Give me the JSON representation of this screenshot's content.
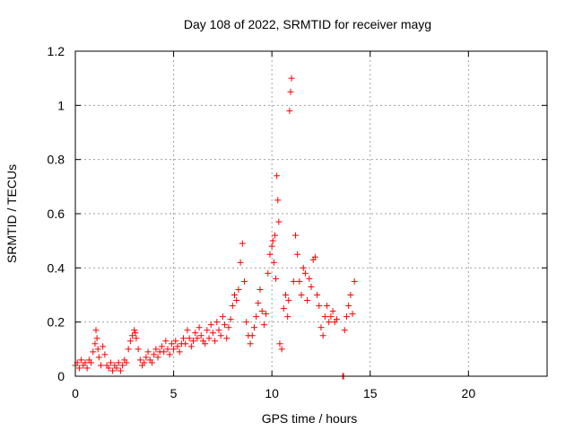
{
  "chart_data": {
    "type": "scatter",
    "title": "Day 108 of 2022, SRMTID for receiver mayg",
    "xlabel": "GPS time / hours",
    "ylabel": "SRMTID / TECUs",
    "xlim": [
      0,
      24
    ],
    "ylim": [
      0,
      1.2
    ],
    "x_ticks": [
      0,
      5,
      10,
      15,
      20
    ],
    "y_ticks": [
      0,
      0.2,
      0.4,
      0.6,
      0.8,
      1,
      1.2
    ],
    "x_tick_labels": [
      "0",
      "5",
      "10",
      "15",
      "20"
    ],
    "y_tick_labels": [
      "0",
      "0.2",
      "0.4",
      "0.6",
      "0.8",
      "1",
      "1.2"
    ],
    "grid": true,
    "marker": "plus",
    "colors": {
      "series": "#ff0000",
      "axis": "#000000",
      "grid": "#a0a0a0"
    },
    "series": [
      {
        "values_note_free": true,
        "x": [
          0.0,
          0.1,
          0.2,
          0.3,
          0.4,
          0.5,
          0.6,
          0.7,
          0.8,
          0.9,
          1.0,
          1.05,
          1.1,
          1.15,
          1.2,
          1.3,
          1.4,
          1.5,
          1.6,
          1.7,
          1.8,
          1.9,
          2.0,
          2.1,
          2.2,
          2.3,
          2.4,
          2.5,
          2.6,
          2.7,
          2.8,
          2.9,
          3.0,
          3.05,
          3.1,
          3.2,
          3.3,
          3.4,
          3.5,
          3.6,
          3.7,
          3.8,
          3.9,
          4.0,
          4.1,
          4.2,
          4.3,
          4.4,
          4.5,
          4.6,
          4.7,
          4.8,
          4.9,
          5.0,
          5.1,
          5.2,
          5.3,
          5.4,
          5.5,
          5.6,
          5.7,
          5.8,
          5.9,
          6.0,
          6.1,
          6.2,
          6.3,
          6.4,
          6.5,
          6.6,
          6.7,
          6.8,
          6.9,
          7.0,
          7.1,
          7.2,
          7.3,
          7.4,
          7.5,
          7.6,
          7.7,
          7.8,
          7.9,
          8.0,
          8.1,
          8.2,
          8.3,
          8.4,
          8.5,
          8.6,
          8.7,
          8.8,
          8.9,
          9.0,
          9.1,
          9.2,
          9.3,
          9.4,
          9.5,
          9.6,
          9.7,
          9.8,
          9.9,
          10.0,
          10.05,
          10.1,
          10.15,
          10.2,
          10.25,
          10.3,
          10.35,
          10.4,
          10.5,
          10.6,
          10.7,
          10.8,
          10.85,
          10.9,
          10.95,
          11.0,
          11.1,
          11.2,
          11.3,
          11.4,
          11.5,
          11.6,
          11.7,
          11.8,
          11.9,
          12.0,
          12.1,
          12.2,
          12.3,
          12.4,
          12.5,
          12.6,
          12.7,
          12.8,
          12.9,
          13.0,
          13.1,
          13.2,
          13.3,
          13.6,
          13.65,
          13.7,
          13.8,
          13.9,
          14.0,
          14.1,
          14.2
        ],
        "y": [
          0.04,
          0.05,
          0.03,
          0.06,
          0.04,
          0.05,
          0.03,
          0.06,
          0.05,
          0.09,
          0.12,
          0.17,
          0.14,
          0.1,
          0.07,
          0.04,
          0.11,
          0.08,
          0.04,
          0.03,
          0.05,
          0.02,
          0.04,
          0.03,
          0.05,
          0.02,
          0.04,
          0.06,
          0.05,
          0.1,
          0.13,
          0.15,
          0.17,
          0.16,
          0.14,
          0.1,
          0.06,
          0.04,
          0.05,
          0.07,
          0.09,
          0.06,
          0.05,
          0.08,
          0.1,
          0.07,
          0.09,
          0.11,
          0.09,
          0.13,
          0.1,
          0.08,
          0.12,
          0.1,
          0.13,
          0.11,
          0.09,
          0.12,
          0.14,
          0.12,
          0.17,
          0.14,
          0.11,
          0.13,
          0.16,
          0.14,
          0.18,
          0.15,
          0.13,
          0.12,
          0.17,
          0.14,
          0.19,
          0.16,
          0.13,
          0.2,
          0.17,
          0.15,
          0.22,
          0.19,
          0.14,
          0.18,
          0.21,
          0.26,
          0.3,
          0.28,
          0.32,
          0.42,
          0.49,
          0.35,
          0.2,
          0.15,
          0.12,
          0.15,
          0.18,
          0.22,
          0.27,
          0.32,
          0.24,
          0.19,
          0.23,
          0.38,
          0.45,
          0.48,
          0.5,
          0.42,
          0.52,
          0.36,
          0.74,
          0.65,
          0.57,
          0.12,
          0.1,
          0.25,
          0.3,
          0.22,
          0.28,
          0.98,
          1.05,
          1.1,
          0.35,
          0.52,
          0.45,
          0.35,
          0.3,
          0.4,
          0.38,
          0.28,
          0.36,
          0.33,
          0.43,
          0.44,
          0.3,
          0.26,
          0.18,
          0.15,
          0.22,
          0.26,
          0.2,
          0.22,
          0.24,
          0.2,
          0.21,
          0.0,
          0.0,
          0.17,
          0.22,
          0.26,
          0.3,
          0.23,
          0.35
        ]
      }
    ]
  }
}
